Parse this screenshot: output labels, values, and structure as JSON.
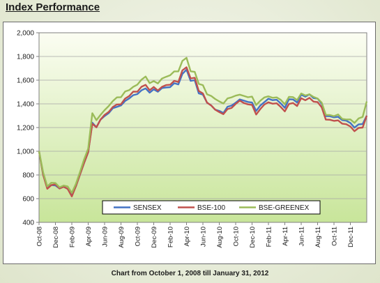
{
  "header": {
    "title": "Index Performance"
  },
  "footer": {
    "caption": "Chart from October 1, 2008 till January 31, 2012"
  },
  "chart_data": {
    "type": "line",
    "title": "",
    "xlabel": "",
    "ylabel": "",
    "ylim": [
      400,
      2000
    ],
    "yticks": [
      400,
      600,
      800,
      1000,
      1200,
      1400,
      1600,
      1800,
      2000
    ],
    "ytick_labels": [
      "400",
      "600",
      "800",
      "1,000",
      "1,200",
      "1,400",
      "1,600",
      "1,800",
      "2,000"
    ],
    "x_tick_labels": [
      "Oct-08",
      "Dec-08",
      "Feb-09",
      "Apr-09",
      "Jun-09",
      "Aug-09",
      "Oct-09",
      "Dec-09",
      "Feb-10",
      "Apr-10",
      "Jun-10",
      "Aug-10",
      "Oct-10",
      "Dec-10",
      "Feb-11",
      "Apr-11",
      "Jun-11",
      "Aug-11",
      "Oct-11",
      "Dec-11"
    ],
    "x_tick_months": [
      0,
      2,
      4,
      6,
      8,
      10,
      12,
      14,
      16,
      18,
      20,
      22,
      24,
      26,
      28,
      30,
      32,
      34,
      36,
      38
    ],
    "xlim_months": [
      0,
      40
    ],
    "grid": true,
    "legend": "bottom-center",
    "x_months": [
      0,
      0.5,
      1,
      1.5,
      2,
      2.5,
      3,
      3.5,
      4,
      4.5,
      5,
      5.5,
      6,
      6.5,
      7,
      7.5,
      8,
      8.5,
      9,
      9.5,
      10,
      10.5,
      11,
      11.5,
      12,
      12.5,
      13,
      13.5,
      14,
      14.5,
      15,
      15.5,
      16,
      16.5,
      17,
      17.5,
      18,
      18.5,
      19,
      19.5,
      20,
      20.5,
      21,
      21.5,
      22,
      22.5,
      23,
      23.5,
      24,
      24.5,
      25,
      25.5,
      26,
      26.5,
      27,
      27.5,
      28,
      28.5,
      29,
      29.5,
      30,
      30.5,
      31,
      31.5,
      32,
      32.5,
      33,
      33.5,
      34,
      34.5,
      35,
      35.5,
      36,
      36.5,
      37,
      37.5,
      38,
      38.5,
      39,
      39.5,
      40
    ],
    "series": [
      {
        "name": "SENSEX",
        "color": "#4472c4",
        "values": [
          1000,
          800,
          680,
          720,
          700,
          690,
          700,
          680,
          640,
          700,
          820,
          900,
          1000,
          1250,
          1200,
          1280,
          1290,
          1330,
          1360,
          1370,
          1390,
          1410,
          1450,
          1460,
          1480,
          1510,
          1520,
          1500,
          1510,
          1510,
          1530,
          1540,
          1550,
          1570,
          1580,
          1650,
          1700,
          1600,
          1600,
          1500,
          1470,
          1420,
          1380,
          1350,
          1340,
          1310,
          1380,
          1370,
          1410,
          1430,
          1420,
          1420,
          1400,
          1350,
          1380,
          1420,
          1450,
          1430,
          1450,
          1400,
          1380,
          1440,
          1440,
          1420,
          1470,
          1470,
          1470,
          1450,
          1440,
          1390,
          1300,
          1280,
          1290,
          1280,
          1260,
          1260,
          1230,
          1210,
          1220,
          1240,
          1300
        ]
      },
      {
        "name": "BSE-100",
        "color": "#c0504d",
        "values": [
          1000,
          800,
          670,
          720,
          710,
          690,
          700,
          680,
          630,
          700,
          820,
          900,
          1000,
          1240,
          1200,
          1280,
          1300,
          1340,
          1370,
          1390,
          1400,
          1430,
          1470,
          1490,
          1500,
          1540,
          1550,
          1520,
          1530,
          1520,
          1540,
          1560,
          1570,
          1590,
          1600,
          1680,
          1720,
          1620,
          1620,
          1520,
          1480,
          1420,
          1380,
          1350,
          1330,
          1300,
          1360,
          1350,
          1400,
          1420,
          1400,
          1400,
          1380,
          1320,
          1350,
          1400,
          1420,
          1400,
          1420,
          1370,
          1350,
          1400,
          1410,
          1390,
          1440,
          1440,
          1440,
          1420,
          1410,
          1360,
          1270,
          1250,
          1260,
          1250,
          1230,
          1230,
          1200,
          1180,
          1190,
          1210,
          1300
        ]
      },
      {
        "name": "BSE-GREENEX",
        "color": "#9bbb59",
        "values": [
          1000,
          820,
          690,
          740,
          720,
          700,
          710,
          700,
          660,
          720,
          840,
          930,
          1030,
          1330,
          1260,
          1320,
          1340,
          1390,
          1420,
          1450,
          1460,
          1490,
          1520,
          1530,
          1560,
          1600,
          1620,
          1580,
          1580,
          1580,
          1610,
          1630,
          1650,
          1670,
          1690,
          1760,
          1800,
          1680,
          1670,
          1580,
          1550,
          1490,
          1460,
          1440,
          1420,
          1390,
          1450,
          1440,
          1470,
          1470,
          1460,
          1460,
          1450,
          1400,
          1420,
          1460,
          1470,
          1450,
          1470,
          1430,
          1410,
          1460,
          1460,
          1440,
          1480,
          1480,
          1470,
          1460,
          1440,
          1400,
          1310,
          1290,
          1300,
          1300,
          1270,
          1270,
          1260,
          1250,
          1270,
          1300,
          1420
        ]
      }
    ]
  }
}
